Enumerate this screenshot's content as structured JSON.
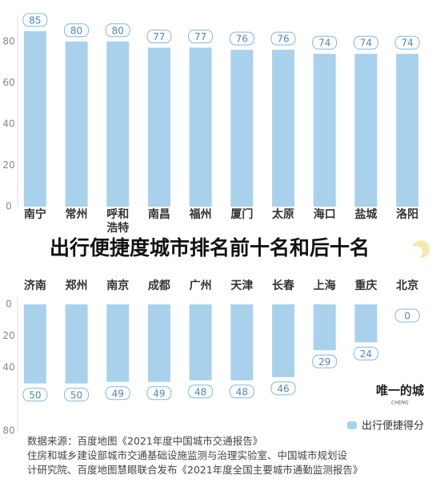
{
  "title": "出行便捷度城市排名前十名和后十名",
  "chart_data": [
    {
      "type": "bar",
      "categories": [
        "南宁",
        "常州",
        "呼和浩特",
        "南昌",
        "福州",
        "厦门",
        "太原",
        "海口",
        "盐城",
        "洛阳"
      ],
      "values": [
        85,
        80,
        80,
        77,
        77,
        76,
        76,
        74,
        74,
        74
      ],
      "color": "#a9d1ec",
      "ylim": [
        0,
        90
      ],
      "yticks": [
        0,
        20,
        40,
        60,
        80
      ],
      "inverted": false
    },
    {
      "type": "bar",
      "categories": [
        "济南",
        "郑州",
        "南京",
        "成都",
        "广州",
        "天津",
        "长春",
        "上海",
        "重庆",
        "北京"
      ],
      "series": [
        {
          "name": "出行便捷得分",
          "color": "#a9d1ec",
          "values": [
            50,
            50,
            49,
            49,
            48,
            48,
            46,
            29,
            24,
            0
          ]
        }
      ],
      "ylim": [
        0,
        80
      ],
      "yticks": [
        0,
        20,
        40,
        80
      ],
      "inverted": true
    }
  ],
  "watermark": {
    "text": "唯一的城",
    "sub": "CHENG"
  },
  "source": [
    "数据来源：百度地图《2021年度中国城市交通报告》",
    "住房和城乡建设部城市交通基础设施监测与治理实验室、中国城市规划设",
    "计研究院、百度地图慧眼联合发布《2021年度全国主要城市通勤监测报告》"
  ]
}
